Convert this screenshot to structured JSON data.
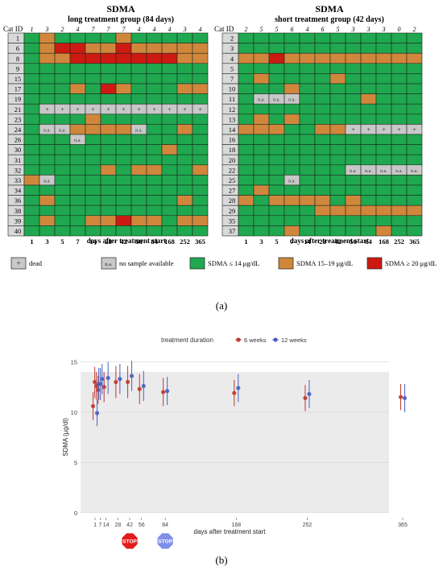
{
  "panel_a": {
    "label": "(a)",
    "legend": [
      {
        "key": "dead",
        "swatch_text": "+",
        "text": "dead",
        "color": "#c8c8c8"
      },
      {
        "key": "na",
        "swatch_text": "n.a.",
        "text": "no sample available",
        "color": "#c8c8c8"
      },
      {
        "key": "low",
        "swatch_text": "",
        "text": "SDMA ≤ 14 μg/dL",
        "color": "#1fa84f"
      },
      {
        "key": "mid",
        "swatch_text": "",
        "text": "SDMA 15–19 μg/dL",
        "color": "#d0873c"
      },
      {
        "key": "high",
        "swatch_text": "",
        "text": "SDMA ≥ 20 μg/dL",
        "color": "#cc1a12"
      }
    ]
  },
  "panel_b": {
    "label": "(b)"
  },
  "chart_data": [
    {
      "type": "heatmap",
      "title": "SDMA",
      "subtitle": "long treatment group (84 days)",
      "row_header": "Cat ID",
      "xlabel": "days after treatment start",
      "columns": [
        "1",
        "3",
        "5",
        "7",
        "14",
        "28",
        "42",
        "56",
        "84",
        "168",
        "252",
        "365"
      ],
      "column_counts": [
        "1",
        "3",
        "2",
        "4",
        "7",
        "7",
        "7",
        "4",
        "4",
        "4",
        "3",
        "4"
      ],
      "rows": [
        "1",
        "6",
        "8",
        "9",
        "15",
        "17",
        "19",
        "21",
        "23",
        "24",
        "26",
        "30",
        "31",
        "32",
        "33",
        "34",
        "36",
        "38",
        "39",
        "40"
      ],
      "cells": [
        [
          "G",
          "O",
          "G",
          "G",
          "G",
          "G",
          "O",
          "G",
          "G",
          "G",
          "G",
          "G"
        ],
        [
          "G",
          "O",
          "R",
          "R",
          "O",
          "O",
          "R",
          "O",
          "O",
          "O",
          "O",
          "O"
        ],
        [
          "G",
          "O",
          "O",
          "R",
          "R",
          "R",
          "R",
          "R",
          "R",
          "R",
          "O",
          "O"
        ],
        [
          "G",
          "G",
          "G",
          "G",
          "G",
          "G",
          "G",
          "G",
          "G",
          "G",
          "G",
          "G"
        ],
        [
          "G",
          "G",
          "G",
          "G",
          "G",
          "G",
          "G",
          "G",
          "G",
          "G",
          "G",
          "G"
        ],
        [
          "G",
          "G",
          "G",
          "O",
          "G",
          "R",
          "O",
          "G",
          "G",
          "G",
          "O",
          "O"
        ],
        [
          "G",
          "G",
          "G",
          "G",
          "G",
          "G",
          "G",
          "G",
          "G",
          "G",
          "G",
          "G"
        ],
        [
          "G",
          "D",
          "D",
          "D",
          "D",
          "D",
          "D",
          "D",
          "D",
          "D",
          "D",
          "D"
        ],
        [
          "G",
          "G",
          "G",
          "G",
          "O",
          "G",
          "G",
          "G",
          "G",
          "G",
          "G",
          "G"
        ],
        [
          "G",
          "N",
          "N",
          "O",
          "O",
          "O",
          "O",
          "N",
          "G",
          "G",
          "O",
          "G"
        ],
        [
          "G",
          "G",
          "G",
          "N",
          "G",
          "G",
          "G",
          "G",
          "G",
          "G",
          "G",
          "G"
        ],
        [
          "G",
          "G",
          "G",
          "G",
          "G",
          "G",
          "G",
          "G",
          "G",
          "O",
          "G",
          "G"
        ],
        [
          "G",
          "G",
          "G",
          "G",
          "G",
          "G",
          "G",
          "G",
          "G",
          "G",
          "G",
          "G"
        ],
        [
          "G",
          "G",
          "G",
          "G",
          "G",
          "O",
          "G",
          "O",
          "O",
          "G",
          "G",
          "O"
        ],
        [
          "O",
          "N",
          "G",
          "G",
          "G",
          "G",
          "G",
          "G",
          "G",
          "G",
          "G",
          "G"
        ],
        [
          "G",
          "G",
          "G",
          "G",
          "G",
          "G",
          "G",
          "G",
          "G",
          "G",
          "G",
          "G"
        ],
        [
          "G",
          "O",
          "G",
          "G",
          "G",
          "G",
          "G",
          "G",
          "G",
          "G",
          "O",
          "G"
        ],
        [
          "G",
          "G",
          "G",
          "G",
          "G",
          "G",
          "G",
          "G",
          "G",
          "G",
          "G",
          "G"
        ],
        [
          "G",
          "O",
          "G",
          "G",
          "O",
          "O",
          "R",
          "O",
          "O",
          "G",
          "O",
          "O"
        ],
        [
          "G",
          "G",
          "G",
          "G",
          "G",
          "G",
          "G",
          "G",
          "G",
          "G",
          "G",
          "G"
        ]
      ],
      "cell_text": {
        "D": "+",
        "N": "n.a."
      },
      "colors": {
        "G": "#1fa84f",
        "O": "#d0873c",
        "R": "#cc1a12",
        "D": "#c8c8c8",
        "N": "#c8c8c8",
        "grid": "#1d2a1d",
        "id_column": "#d9d9d9"
      }
    },
    {
      "type": "heatmap",
      "title": "SDMA",
      "subtitle": "short treatment group (42 days)",
      "row_header": "Cat ID",
      "xlabel": "days after treatment start",
      "columns": [
        "1",
        "3",
        "5",
        "7",
        "14",
        "28",
        "42",
        "56",
        "84",
        "168",
        "252",
        "365"
      ],
      "column_counts": [
        "2",
        "5",
        "5",
        "6",
        "4",
        "6",
        "5",
        "3",
        "3",
        "3",
        "0",
        "2"
      ],
      "rows": [
        "2",
        "3",
        "4",
        "5",
        "7",
        "10",
        "11",
        "12",
        "13",
        "14",
        "16",
        "18",
        "20",
        "22",
        "25",
        "27",
        "28",
        "29",
        "35",
        "37"
      ],
      "cells": [
        [
          "G",
          "G",
          "G",
          "G",
          "G",
          "G",
          "G",
          "G",
          "G",
          "G",
          "G",
          "G"
        ],
        [
          "G",
          "G",
          "G",
          "G",
          "G",
          "G",
          "G",
          "G",
          "G",
          "G",
          "G",
          "G"
        ],
        [
          "O",
          "O",
          "R",
          "O",
          "O",
          "O",
          "O",
          "O",
          "O",
          "O",
          "O",
          "O"
        ],
        [
          "G",
          "G",
          "G",
          "G",
          "G",
          "G",
          "G",
          "G",
          "G",
          "G",
          "G",
          "G"
        ],
        [
          "G",
          "O",
          "G",
          "G",
          "G",
          "G",
          "O",
          "G",
          "G",
          "G",
          "G",
          "G"
        ],
        [
          "G",
          "G",
          "G",
          "O",
          "G",
          "G",
          "G",
          "G",
          "G",
          "G",
          "G",
          "G"
        ],
        [
          "G",
          "N",
          "N",
          "N",
          "G",
          "G",
          "G",
          "G",
          "O",
          "G",
          "G",
          "G"
        ],
        [
          "G",
          "G",
          "G",
          "G",
          "G",
          "G",
          "G",
          "G",
          "G",
          "G",
          "G",
          "G"
        ],
        [
          "G",
          "O",
          "G",
          "O",
          "G",
          "G",
          "G",
          "G",
          "G",
          "G",
          "G",
          "G"
        ],
        [
          "O",
          "O",
          "O",
          "G",
          "G",
          "O",
          "O",
          "D",
          "D",
          "D",
          "D",
          "D"
        ],
        [
          "G",
          "G",
          "G",
          "G",
          "G",
          "G",
          "G",
          "G",
          "G",
          "G",
          "G",
          "G"
        ],
        [
          "G",
          "G",
          "G",
          "G",
          "G",
          "G",
          "G",
          "G",
          "G",
          "G",
          "G",
          "G"
        ],
        [
          "G",
          "G",
          "G",
          "G",
          "G",
          "G",
          "G",
          "G",
          "G",
          "G",
          "G",
          "G"
        ],
        [
          "G",
          "G",
          "G",
          "G",
          "G",
          "G",
          "G",
          "N",
          "N",
          "N",
          "N",
          "N"
        ],
        [
          "G",
          "G",
          "G",
          "N",
          "G",
          "G",
          "G",
          "G",
          "G",
          "G",
          "G",
          "G"
        ],
        [
          "G",
          "O",
          "G",
          "G",
          "G",
          "G",
          "G",
          "G",
          "G",
          "G",
          "G",
          "G"
        ],
        [
          "O",
          "G",
          "O",
          "O",
          "O",
          "O",
          "G",
          "O",
          "G",
          "G",
          "G",
          "G"
        ],
        [
          "G",
          "G",
          "G",
          "G",
          "G",
          "O",
          "O",
          "O",
          "O",
          "O",
          "O",
          "O"
        ],
        [
          "G",
          "G",
          "G",
          "G",
          "G",
          "G",
          "G",
          "G",
          "G",
          "G",
          "G",
          "G"
        ],
        [
          "G",
          "G",
          "G",
          "O",
          "G",
          "G",
          "G",
          "G",
          "G",
          "O",
          "G",
          "G"
        ]
      ],
      "cell_text": {
        "D": "+",
        "N": "n.a."
      },
      "colors": {
        "G": "#1fa84f",
        "O": "#d0873c",
        "R": "#cc1a12",
        "D": "#c8c8c8",
        "N": "#c8c8c8",
        "grid": "#1d2a1d",
        "id_column": "#d9d9d9"
      }
    },
    {
      "type": "scatter",
      "title": "",
      "legend_title": "treatment duration",
      "legend_position": "top",
      "xlabel": "days after treatment start",
      "ylabel": "SDMA (µg/dl)",
      "x_ticks": [
        1,
        7,
        14,
        28,
        42,
        56,
        84,
        168,
        252,
        365
      ],
      "y_ticks": [
        0,
        5,
        10,
        15
      ],
      "xlim": [
        0,
        365
      ],
      "ylim": [
        -0.5,
        16
      ],
      "reference_band": [
        0,
        14
      ],
      "grid": true,
      "stop_signs": [
        {
          "text": "STOP",
          "day": 42,
          "color": "#e21b1b"
        },
        {
          "text": "STOP",
          "day": 84,
          "color": "#7e8fe6"
        }
      ],
      "series": [
        {
          "name": "6 weeks",
          "color": "#c0392b",
          "x": [
            1,
            3,
            5,
            7,
            14,
            28,
            42,
            56,
            84,
            168,
            252,
            365
          ],
          "y": [
            10.6,
            13.0,
            12.6,
            12.2,
            12.5,
            13.0,
            13.0,
            12.3,
            12.0,
            11.9,
            11.4,
            11.5
          ],
          "lower": [
            9.2,
            11.4,
            11.2,
            10.8,
            11.0,
            11.4,
            11.4,
            10.8,
            10.6,
            10.6,
            10.1,
            10.2
          ],
          "upper": [
            12.0,
            14.5,
            14.0,
            13.6,
            14.0,
            14.6,
            14.6,
            13.8,
            13.4,
            13.2,
            12.7,
            12.8
          ]
        },
        {
          "name": "12 weeks",
          "color": "#4a5fc1",
          "x": [
            1,
            3,
            5,
            7,
            14,
            28,
            42,
            56,
            84,
            168,
            252,
            365
          ],
          "y": [
            9.9,
            12.8,
            12.8,
            13.3,
            13.4,
            13.3,
            13.6,
            12.6,
            12.1,
            12.4,
            11.8,
            11.4
          ],
          "lower": [
            8.6,
            11.2,
            11.2,
            11.8,
            11.8,
            11.8,
            12.1,
            11.1,
            10.7,
            11.0,
            10.4,
            10.0
          ],
          "upper": [
            11.2,
            14.4,
            14.4,
            14.8,
            15.0,
            14.8,
            15.1,
            14.1,
            13.5,
            13.8,
            13.2,
            12.8
          ]
        }
      ]
    }
  ]
}
